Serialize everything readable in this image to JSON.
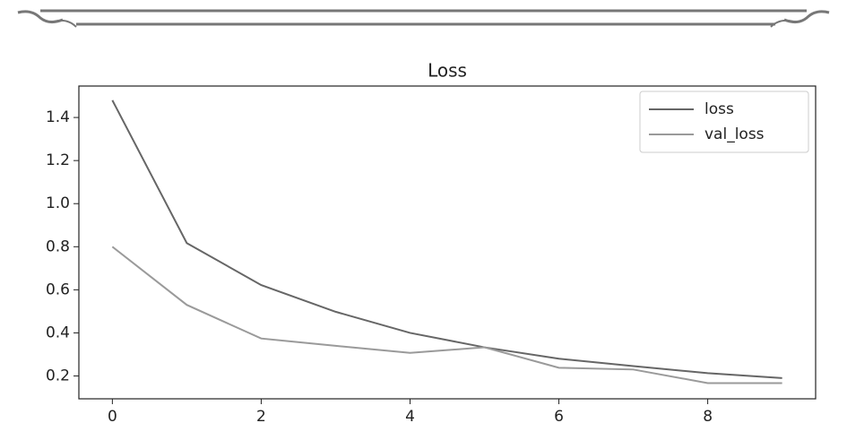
{
  "chart_data": {
    "type": "line",
    "title": "Loss",
    "x": [
      0,
      1,
      2,
      3,
      4,
      5,
      6,
      7,
      8,
      9
    ],
    "series": [
      {
        "name": "loss",
        "color": "#666666",
        "values": [
          1.48,
          0.817,
          0.622,
          0.498,
          0.4,
          0.333,
          0.28,
          0.246,
          0.213,
          0.19
        ]
      },
      {
        "name": "val_loss",
        "color": "#9a9a9a",
        "values": [
          0.8,
          0.53,
          0.374,
          0.34,
          0.307,
          0.333,
          0.238,
          0.23,
          0.167,
          0.167
        ]
      }
    ],
    "xlim": [
      -0.45,
      9.45
    ],
    "xticks": [
      0,
      2,
      4,
      6,
      8
    ],
    "ylim": [
      0.094,
      1.546
    ],
    "yticks": [
      0.2,
      0.4,
      0.6,
      0.8,
      {
        "value": 1,
        "label": "1.0"
      },
      1.2,
      1.4
    ],
    "legend": "upper right"
  }
}
